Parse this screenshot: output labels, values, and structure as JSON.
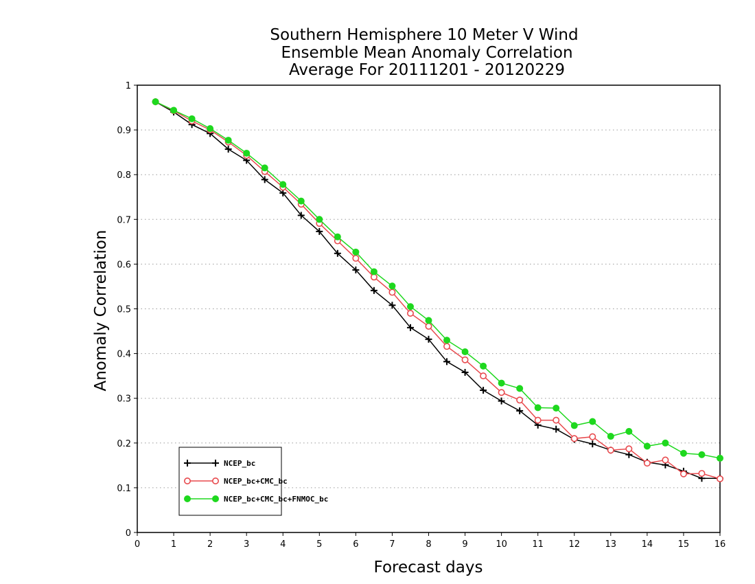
{
  "chart_data": {
    "type": "line",
    "title_lines": [
      "Southern Hemisphere 10 Meter V Wind",
      "Ensemble Mean Anomaly Correlation",
      "Average For 20111201 - 20120229"
    ],
    "xlabel": "Forecast days",
    "ylabel": "Anomaly Correlation",
    "xlim": [
      0,
      16
    ],
    "ylim": [
      0,
      1
    ],
    "x_ticks": [
      0,
      1,
      2,
      3,
      4,
      5,
      6,
      7,
      8,
      9,
      10,
      11,
      12,
      13,
      14,
      15,
      16
    ],
    "x_tick_labels": [
      "0",
      "1",
      "2",
      "3",
      "4",
      "5",
      "6",
      "7",
      "8",
      "9",
      "10",
      "11",
      "12",
      "13",
      "14",
      "15",
      "16"
    ],
    "y_ticks": [
      0,
      0.1,
      0.2,
      0.3,
      0.4,
      0.5,
      0.6,
      0.7,
      0.8,
      0.9,
      1
    ],
    "y_tick_labels": [
      "0",
      "0.1",
      "0.2",
      "0.3",
      "0.4",
      "0.5",
      "0.6",
      "0.7",
      "0.8",
      "0.9",
      "1"
    ],
    "grid": true,
    "legend_position": "bottom-left",
    "x": [
      0.5,
      1,
      1.5,
      2,
      2.5,
      3,
      3.5,
      4,
      4.5,
      5,
      5.5,
      6,
      6.5,
      7,
      7.5,
      8,
      8.5,
      9,
      9.5,
      10,
      10.5,
      11,
      11.5,
      12,
      12.5,
      13,
      13.5,
      14,
      14.5,
      15,
      15.5,
      16
    ],
    "series": [
      {
        "name": "NCEP_bc",
        "color": "#000000",
        "marker": "plus",
        "values": [
          0.963,
          0.94,
          0.912,
          0.892,
          0.857,
          0.832,
          0.789,
          0.759,
          0.709,
          0.673,
          0.624,
          0.587,
          0.541,
          0.508,
          0.458,
          0.432,
          0.382,
          0.358,
          0.318,
          0.294,
          0.272,
          0.24,
          0.231,
          0.208,
          0.198,
          0.184,
          0.174,
          0.157,
          0.151,
          0.137,
          0.121,
          0.121
        ]
      },
      {
        "name": "NCEP_bc+CMC_bc",
        "color": "#e8494d",
        "marker": "open-circle",
        "values": [
          0.963,
          0.943,
          0.92,
          0.9,
          0.873,
          0.843,
          0.807,
          0.772,
          0.734,
          0.691,
          0.652,
          0.613,
          0.571,
          0.537,
          0.49,
          0.461,
          0.416,
          0.386,
          0.35,
          0.313,
          0.296,
          0.251,
          0.251,
          0.21,
          0.214,
          0.184,
          0.187,
          0.155,
          0.162,
          0.131,
          0.132,
          0.12
        ]
      },
      {
        "name": "NCEP_bc+CMC_bc+FNMOC_bc",
        "color": "#1ed81e",
        "marker": "filled-circle",
        "values": [
          0.963,
          0.944,
          0.925,
          0.903,
          0.877,
          0.848,
          0.815,
          0.778,
          0.741,
          0.7,
          0.661,
          0.627,
          0.583,
          0.551,
          0.505,
          0.474,
          0.43,
          0.404,
          0.372,
          0.334,
          0.322,
          0.279,
          0.278,
          0.239,
          0.248,
          0.215,
          0.226,
          0.193,
          0.2,
          0.177,
          0.174,
          0.166
        ]
      }
    ]
  }
}
